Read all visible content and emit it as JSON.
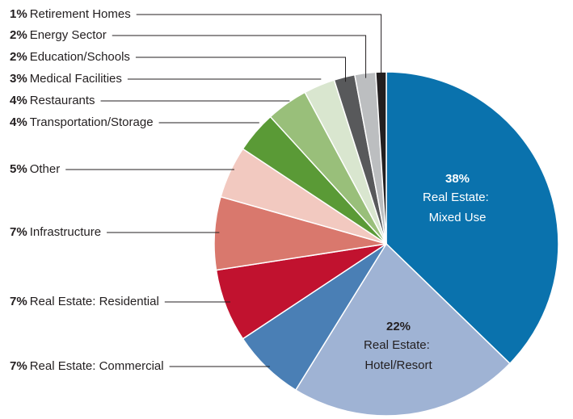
{
  "chart_data": {
    "type": "pie",
    "categories": [
      "Real Estate: Mixed Use",
      "Real Estate: Hotel/Resort",
      "Real Estate: Commercial",
      "Real Estate: Residential",
      "Infrastructure",
      "Other",
      "Transportation/Storage",
      "Restaurants",
      "Medical Facilities",
      "Education/Schools",
      "Energy Sector",
      "Retirement Homes"
    ],
    "values": [
      38,
      22,
      7,
      7,
      7,
      5,
      4,
      4,
      3,
      2,
      2,
      1
    ],
    "value_labels": [
      "38%",
      "22%",
      "7%",
      "7%",
      "7%",
      "5%",
      "4%",
      "4%",
      "3%",
      "2%",
      "2%",
      "1%"
    ],
    "colors": [
      "#0a72ad",
      "#9fb3d4",
      "#4a7fb5",
      "#c1122f",
      "#d9786d",
      "#f2c9c0",
      "#5a9a36",
      "#99bf7a",
      "#d9e6cf",
      "#58595b",
      "#bcbec0",
      "#231f20"
    ]
  }
}
